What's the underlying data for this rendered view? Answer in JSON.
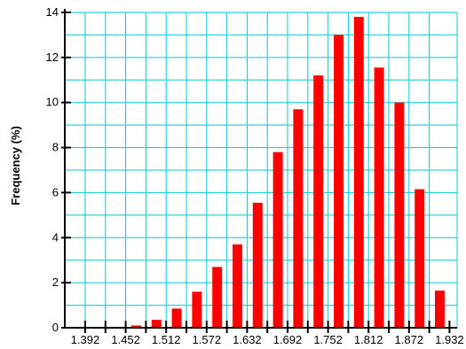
{
  "chart_data": {
    "type": "bar",
    "title": "",
    "xlabel": "",
    "ylabel": "Frequency (%)",
    "ylim": [
      0,
      14
    ],
    "y_ticks": [
      0,
      2,
      4,
      6,
      8,
      10,
      12,
      14
    ],
    "x_tick_labels": [
      "1.392",
      "1.452",
      "1.512",
      "1.572",
      "1.632",
      "1.692",
      "1.752",
      "1.812",
      "1.872",
      "1.932"
    ],
    "x_tick_display": [
      "1.392",
      "1.452",
      "1.512",
      "1.572",
      "1.632",
      "1.692",
      "1.752",
      "1.812",
      "1.872",
      "1.932"
    ],
    "grid": true,
    "colors": {
      "bar": "#ff0000",
      "grid": "#00c8d4",
      "axis": "#000000"
    },
    "series": [
      {
        "values": [
          0,
          0,
          0.1,
          0.35,
          0.85,
          1.6,
          2.7,
          3.7,
          5.55,
          7.8,
          9.7,
          11.2,
          13.0,
          13.8,
          11.55,
          10.0,
          6.15,
          1.65
        ]
      }
    ]
  }
}
